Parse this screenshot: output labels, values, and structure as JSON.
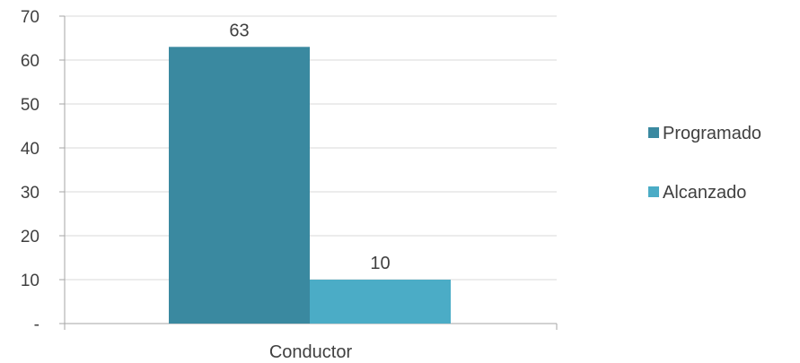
{
  "chart_data": {
    "type": "bar",
    "categories": [
      "Conductor"
    ],
    "series": [
      {
        "name": "Programado",
        "values": [
          63
        ],
        "color": "#3A89A0"
      },
      {
        "name": "Alcanzado",
        "values": [
          10
        ],
        "color": "#4BACC6"
      }
    ],
    "ylim": [
      0,
      70
    ],
    "y_ticks": [
      {
        "value": 0,
        "label": "-"
      },
      {
        "value": 10,
        "label": "10"
      },
      {
        "value": 20,
        "label": "20"
      },
      {
        "value": 30,
        "label": "30"
      },
      {
        "value": 40,
        "label": "40"
      },
      {
        "value": 50,
        "label": "50"
      },
      {
        "value": 60,
        "label": "60"
      },
      {
        "value": 70,
        "label": "70"
      }
    ],
    "grid": true,
    "legend_position": "right",
    "data_labels": true
  }
}
